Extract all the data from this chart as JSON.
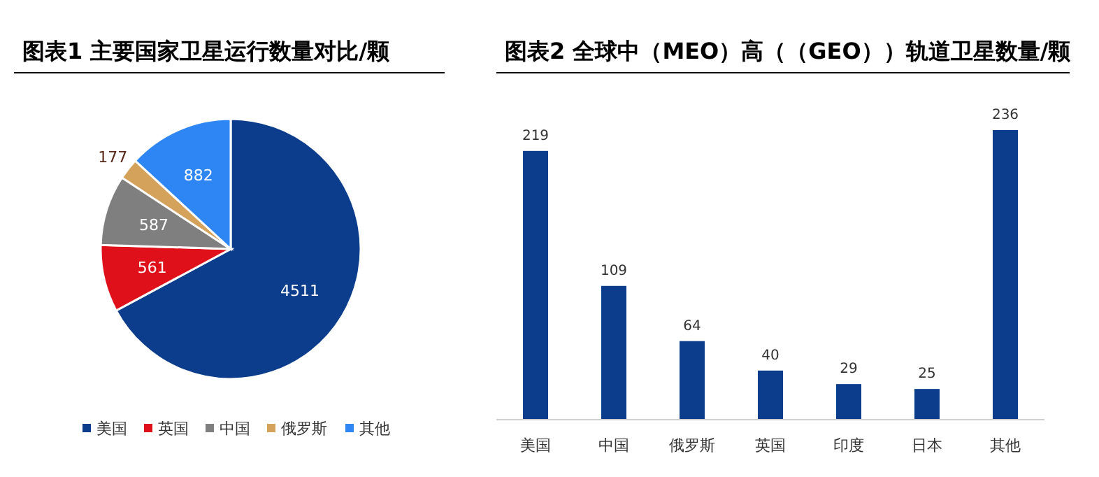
{
  "chart_data": [
    {
      "type": "pie",
      "title": "图表1   主要国家卫星运行数量对比/颗",
      "categories": [
        "美国",
        "英国",
        "中国",
        "俄罗斯",
        "其他"
      ],
      "values": [
        4511,
        561,
        587,
        177,
        882
      ],
      "colors": [
        "#0b3d8c",
        "#e0101a",
        "#7f7f7f",
        "#d4a25a",
        "#2e86f5"
      ],
      "data_labels": true,
      "legend": "bottom"
    },
    {
      "type": "bar",
      "title": "图表2   全球中（MEO）高（（GEO））轨道卫星数量/颗",
      "categories": [
        "美国",
        "中国",
        "俄罗斯",
        "英国",
        "印度",
        "日本",
        "其他"
      ],
      "values": [
        219,
        109,
        64,
        40,
        29,
        25,
        236
      ],
      "color": "#0b3d8c",
      "data_labels": true
    }
  ]
}
